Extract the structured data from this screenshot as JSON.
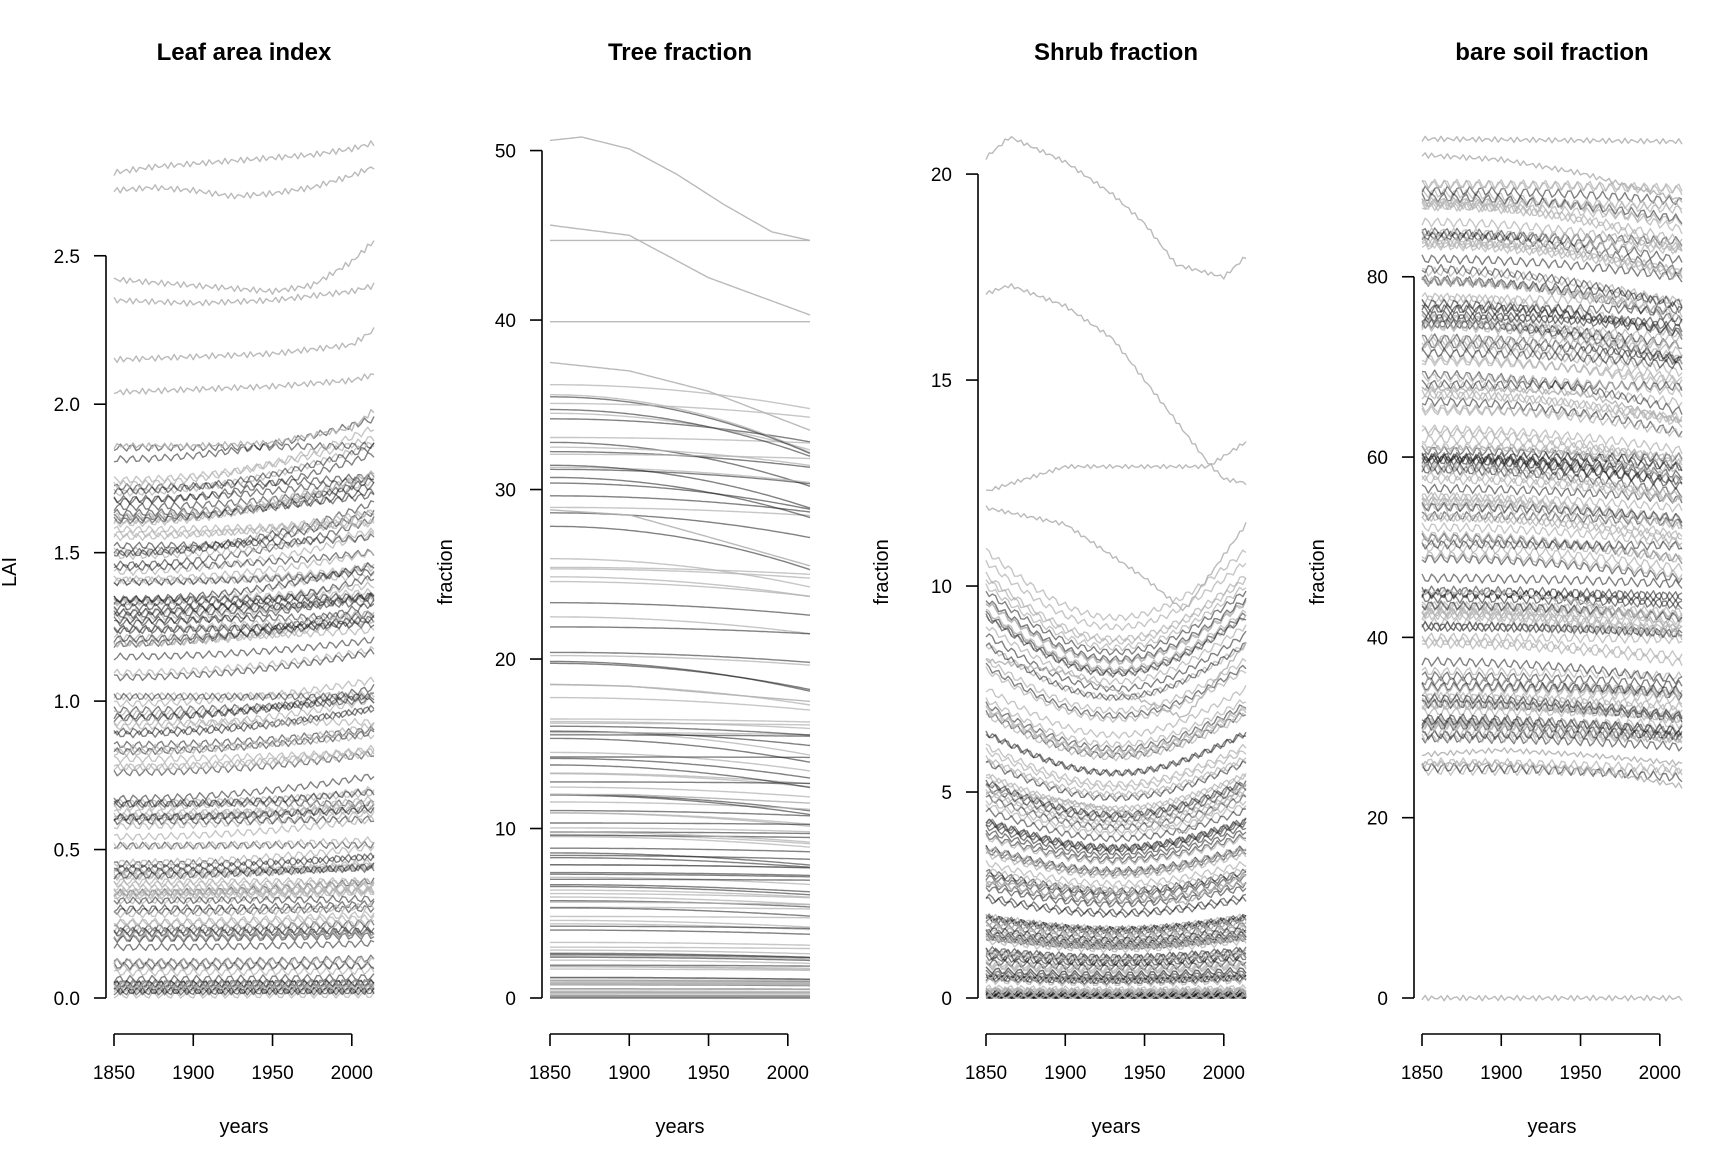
{
  "colors": {
    "line_light": "#b3b3b3",
    "line_dark": "#1a1a1a",
    "axis": "#000000"
  },
  "chart_data": [
    {
      "type": "line",
      "title": "Leaf area index",
      "xlabel": "years",
      "ylabel": "LAI",
      "xlim": [
        1850,
        2014
      ],
      "ylim": [
        0,
        2.9
      ],
      "xticks": [
        "1850",
        "1900",
        "1950",
        "2000"
      ],
      "yticks": [
        "0.0",
        "0.5",
        "1.0",
        "1.5",
        "2.0",
        "2.5"
      ],
      "ytick_values": [
        0,
        0.5,
        1.0,
        1.5,
        2.0,
        2.5
      ],
      "y_axis_max": 2.5,
      "grid": false,
      "legend": "none",
      "series_note_lines": 600,
      "series": [
        {
          "x": [
            1850,
            1875,
            1900,
            1925,
            1950,
            1975,
            2000,
            2014
          ],
          "values": [
            2.78,
            2.8,
            2.81,
            2.82,
            2.83,
            2.84,
            2.86,
            2.88
          ]
        },
        {
          "x": [
            1850,
            1875,
            1900,
            1925,
            1950,
            1975,
            2000,
            2014
          ],
          "values": [
            2.72,
            2.73,
            2.72,
            2.7,
            2.71,
            2.73,
            2.77,
            2.8
          ]
        },
        {
          "x": [
            1850,
            1900,
            1950,
            1975,
            2000,
            2014
          ],
          "values": [
            2.42,
            2.4,
            2.38,
            2.4,
            2.48,
            2.55
          ]
        },
        {
          "x": [
            1850,
            1900,
            1950,
            2000,
            2014
          ],
          "values": [
            2.35,
            2.34,
            2.35,
            2.38,
            2.4
          ]
        },
        {
          "x": [
            1850,
            1900,
            1950,
            2000,
            2014
          ],
          "values": [
            2.15,
            2.16,
            2.17,
            2.2,
            2.25
          ]
        },
        {
          "x": [
            1850,
            1900,
            1950,
            2000,
            2014
          ],
          "values": [
            2.04,
            2.05,
            2.06,
            2.08,
            2.1
          ]
        },
        {
          "x": [
            1850,
            1900,
            1950,
            2000,
            2014
          ],
          "values": [
            1.86,
            1.86,
            1.87,
            1.92,
            1.98
          ]
        }
      ]
    },
    {
      "type": "line",
      "title": "Tree fraction",
      "xlabel": "years",
      "ylabel": "fraction",
      "xlim": [
        1850,
        2014
      ],
      "ylim": [
        0,
        50.8
      ],
      "xticks": [
        "1850",
        "1900",
        "1950",
        "2000"
      ],
      "yticks": [
        "0",
        "10",
        "20",
        "30",
        "40",
        "50"
      ],
      "ytick_values": [
        0,
        10,
        20,
        30,
        40,
        50
      ],
      "y_axis_max": 50,
      "grid": false,
      "legend": "none",
      "series": [
        {
          "x": [
            1850,
            1870,
            1900,
            1930,
            1960,
            1990,
            2014
          ],
          "values": [
            50.6,
            50.8,
            50.1,
            48.6,
            46.8,
            45.2,
            44.7
          ]
        },
        {
          "x": [
            1850,
            2014
          ],
          "values": [
            44.7,
            44.7
          ]
        },
        {
          "x": [
            1850,
            2014
          ],
          "values": [
            39.9,
            39.9
          ]
        },
        {
          "x": [
            1850,
            1900,
            1950,
            2014
          ],
          "values": [
            45.6,
            45.0,
            42.5,
            40.3
          ]
        },
        {
          "x": [
            1850,
            1900,
            1950,
            2014
          ],
          "values": [
            37.5,
            37.0,
            35.8,
            33.5
          ]
        },
        {
          "x": [
            1850,
            1900,
            1950,
            2014
          ],
          "values": [
            28.8,
            28.5,
            27.2,
            25.5
          ]
        },
        {
          "x": [
            1850,
            1900,
            1950,
            2014
          ],
          "values": [
            18.5,
            18.4,
            18.0,
            17.5
          ]
        },
        {
          "x": [
            1850,
            1900,
            1950,
            2014
          ],
          "values": [
            12.0,
            12.0,
            11.8,
            11.5
          ]
        }
      ]
    },
    {
      "type": "line",
      "title": "Shrub fraction",
      "xlabel": "years",
      "ylabel": "fraction",
      "xlim": [
        1850,
        2014
      ],
      "ylim": [
        0,
        20.9
      ],
      "xticks": [
        "1850",
        "1900",
        "1950",
        "2000"
      ],
      "yticks": [
        "0",
        "5",
        "10",
        "15",
        "20"
      ],
      "ytick_values": [
        0,
        5,
        10,
        15,
        20
      ],
      "y_axis_max": 20,
      "grid": false,
      "legend": "none",
      "series": [
        {
          "x": [
            1850,
            1865,
            1900,
            1930,
            1950,
            1970,
            1990,
            2000,
            2014
          ],
          "values": [
            20.4,
            20.9,
            20.3,
            19.5,
            18.8,
            17.8,
            17.6,
            17.5,
            18.0
          ]
        },
        {
          "x": [
            1850,
            1865,
            1900,
            1930,
            1950,
            1970,
            1990,
            2000,
            2014
          ],
          "values": [
            17.1,
            17.3,
            16.8,
            16.0,
            15.0,
            14.0,
            13.0,
            12.6,
            12.5
          ]
        },
        {
          "x": [
            1850,
            1900,
            1950,
            1990,
            2014
          ],
          "values": [
            12.3,
            12.9,
            12.9,
            12.9,
            13.5
          ]
        },
        {
          "x": [
            1850,
            1900,
            1950,
            1975,
            2014
          ],
          "values": [
            11.9,
            11.5,
            10.2,
            9.4,
            11.5
          ]
        },
        {
          "x": [
            1850,
            1900,
            1950,
            1975,
            2014
          ],
          "values": [
            8.2,
            7.9,
            7.2,
            6.8,
            8.6
          ]
        },
        {
          "x": [
            1850,
            1900,
            1950,
            1975,
            2014
          ],
          "values": [
            5.0,
            4.8,
            4.4,
            4.0,
            5.2
          ]
        },
        {
          "x": [
            1850,
            1900,
            1950,
            1975,
            2014
          ],
          "values": [
            2.8,
            2.7,
            2.5,
            2.3,
            3.0
          ]
        }
      ]
    },
    {
      "type": "line",
      "title": "bare soil fraction",
      "xlabel": "years",
      "ylabel": "fraction",
      "xlim": [
        1850,
        2014
      ],
      "ylim": [
        0,
        95.5
      ],
      "xticks": [
        "1850",
        "1900",
        "1950",
        "2000"
      ],
      "yticks": [
        "0",
        "20",
        "40",
        "60",
        "80"
      ],
      "ytick_values": [
        0,
        20,
        40,
        60,
        80
      ],
      "y_axis_max": 80,
      "grid": false,
      "legend": "none",
      "series": [
        {
          "x": [
            1850,
            2014
          ],
          "values": [
            95.3,
            95.0
          ]
        },
        {
          "x": [
            1850,
            1900,
            1950,
            2014
          ],
          "values": [
            93.5,
            93.0,
            91.5,
            88.5
          ]
        },
        {
          "x": [
            1850,
            1900,
            1950,
            2014
          ],
          "values": [
            67.5,
            67.5,
            67.0,
            64.0
          ]
        },
        {
          "x": [
            1850,
            1900,
            1950,
            2014
          ],
          "values": [
            61.0,
            61.0,
            60.5,
            57.5
          ]
        },
        {
          "x": [
            1850,
            1900,
            1950,
            2014
          ],
          "values": [
            45.0,
            45.0,
            44.0,
            41.0
          ]
        },
        {
          "x": [
            1850,
            1900,
            1950,
            2014
          ],
          "values": [
            27.0,
            27.5,
            27.0,
            26.0
          ]
        },
        {
          "x": [
            1850,
            1900,
            1950,
            2014
          ],
          "values": [
            26.0,
            26.0,
            25.5,
            23.5
          ]
        },
        {
          "x": [
            1850,
            2014
          ],
          "values": [
            0,
            0
          ]
        }
      ]
    }
  ]
}
